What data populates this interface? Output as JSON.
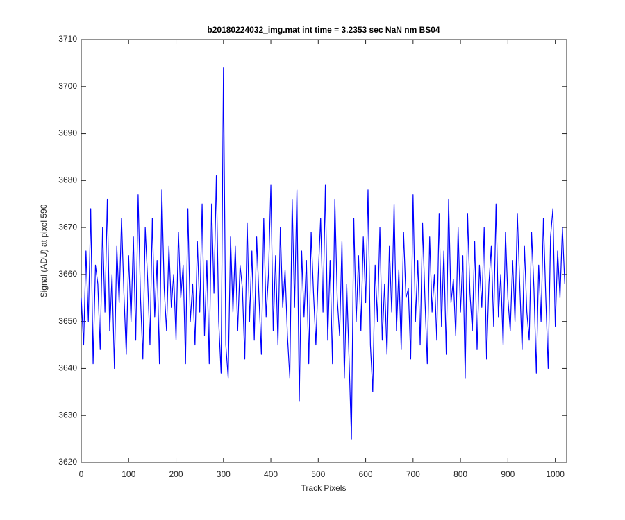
{
  "chart_data": {
    "type": "line",
    "title": "b20180224032_img.mat int time = 3.2353 sec  NaN nm BS04",
    "x_label": "Track Pixels",
    "y_label": "Signal (ADU) at pixel 590",
    "xlim": [
      0,
      1024
    ],
    "ylim": [
      3620,
      3710
    ],
    "xticks": [
      0,
      100,
      200,
      300,
      400,
      500,
      600,
      700,
      800,
      900,
      1000
    ],
    "yticks": [
      3620,
      3630,
      3640,
      3650,
      3660,
      3670,
      3680,
      3690,
      3700,
      3710
    ],
    "grid": false,
    "x": [
      0,
      5,
      10,
      15,
      20,
      25,
      30,
      35,
      40,
      45,
      50,
      55,
      60,
      65,
      70,
      75,
      80,
      85,
      90,
      95,
      100,
      105,
      110,
      115,
      120,
      125,
      130,
      135,
      140,
      145,
      150,
      155,
      160,
      165,
      170,
      175,
      180,
      185,
      190,
      195,
      200,
      205,
      210,
      215,
      220,
      225,
      230,
      235,
      240,
      245,
      250,
      255,
      260,
      265,
      270,
      275,
      280,
      285,
      290,
      295,
      300,
      305,
      310,
      315,
      320,
      325,
      330,
      335,
      340,
      345,
      350,
      355,
      360,
      365,
      370,
      375,
      380,
      385,
      390,
      395,
      400,
      405,
      410,
      415,
      420,
      425,
      430,
      435,
      440,
      445,
      450,
      455,
      460,
      465,
      470,
      475,
      480,
      485,
      490,
      495,
      500,
      505,
      510,
      515,
      520,
      525,
      530,
      535,
      540,
      545,
      550,
      555,
      560,
      565,
      570,
      575,
      580,
      585,
      590,
      595,
      600,
      605,
      610,
      615,
      620,
      625,
      630,
      635,
      640,
      645,
      650,
      655,
      660,
      665,
      670,
      675,
      680,
      685,
      690,
      695,
      700,
      705,
      710,
      715,
      720,
      725,
      730,
      735,
      740,
      745,
      750,
      755,
      760,
      765,
      770,
      775,
      780,
      785,
      790,
      795,
      800,
      805,
      810,
      815,
      820,
      825,
      830,
      835,
      840,
      845,
      850,
      855,
      860,
      865,
      870,
      875,
      880,
      885,
      890,
      895,
      900,
      905,
      910,
      915,
      920,
      925,
      930,
      935,
      940,
      945,
      950,
      955,
      960,
      965,
      970,
      975,
      980,
      985,
      990,
      995,
      1000,
      1005,
      1010,
      1015,
      1020
    ],
    "series": [
      {
        "name": "signal",
        "color": "#0000ff",
        "values": [
          3655,
          3645,
          3665,
          3650,
          3674,
          3641,
          3662,
          3658,
          3644,
          3670,
          3652,
          3676,
          3648,
          3660,
          3640,
          3666,
          3654,
          3672,
          3656,
          3643,
          3664,
          3650,
          3668,
          3646,
          3677,
          3655,
          3642,
          3670,
          3659,
          3645,
          3672,
          3651,
          3663,
          3641,
          3678,
          3657,
          3648,
          3666,
          3653,
          3660,
          3646,
          3669,
          3655,
          3662,
          3641,
          3674,
          3650,
          3658,
          3645,
          3667,
          3652,
          3675,
          3647,
          3663,
          3641,
          3675,
          3656,
          3681,
          3650,
          3639,
          3704,
          3645,
          3638,
          3668,
          3652,
          3666,
          3648,
          3662,
          3657,
          3642,
          3671,
          3650,
          3665,
          3646,
          3668,
          3655,
          3643,
          3672,
          3651,
          3660,
          3679,
          3648,
          3664,
          3645,
          3670,
          3653,
          3661,
          3647,
          3638,
          3676,
          3653,
          3678,
          3633,
          3665,
          3651,
          3663,
          3641,
          3669,
          3656,
          3645,
          3660,
          3672,
          3652,
          3679,
          3646,
          3663,
          3641,
          3676,
          3655,
          3647,
          3667,
          3638,
          3658,
          3642,
          3625,
          3672,
          3650,
          3664,
          3648,
          3668,
          3654,
          3678,
          3645,
          3635,
          3662,
          3650,
          3670,
          3646,
          3658,
          3643,
          3666,
          3652,
          3675,
          3648,
          3661,
          3644,
          3669,
          3655,
          3657,
          3642,
          3677,
          3650,
          3663,
          3645,
          3671,
          3655,
          3641,
          3668,
          3652,
          3660,
          3646,
          3673,
          3649,
          3665,
          3643,
          3676,
          3654,
          3659,
          3647,
          3670,
          3652,
          3664,
          3638,
          3673,
          3656,
          3648,
          3667,
          3644,
          3662,
          3653,
          3670,
          3642,
          3658,
          3666,
          3649,
          3675,
          3651,
          3660,
          3645,
          3669,
          3655,
          3648,
          3663,
          3650,
          3673,
          3658,
          3644,
          3666,
          3652,
          3646,
          3669,
          3657,
          3639,
          3662,
          3650,
          3672,
          3655,
          3640,
          3668,
          3674,
          3649,
          3665,
          3655,
          3670,
          3658
        ]
      }
    ]
  }
}
